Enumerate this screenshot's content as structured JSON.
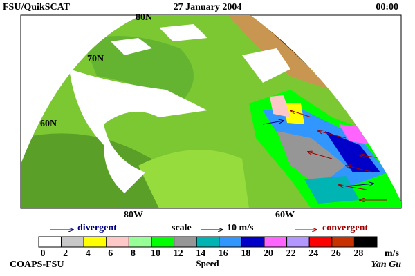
{
  "header": {
    "left": "FSU/QuikSCAT",
    "center": "27 January 2004",
    "right": "00:00"
  },
  "map": {
    "lat_labels": [
      "80N",
      "70N",
      "60N"
    ],
    "lon_labels": [
      "80W",
      "60W"
    ]
  },
  "legend": {
    "left": "divergent",
    "scale": "scale",
    "scale_value": "10 m/s",
    "right": "convergent"
  },
  "colorbar": {
    "colors": [
      "#ffffff",
      "#c8c8c8",
      "#ffff00",
      "#ffc8c8",
      "#96ff96",
      "#00ff00",
      "#969696",
      "#00b4b4",
      "#3296ff",
      "#0000c8",
      "#ff64ff",
      "#b496ff",
      "#ff0000",
      "#c83200",
      "#000000"
    ],
    "ticks": [
      0,
      2,
      4,
      6,
      8,
      10,
      12,
      14,
      16,
      18,
      20,
      22,
      24,
      26,
      28
    ],
    "unit": "m/s",
    "label": "Speed"
  },
  "footer": {
    "left": "COAPS-FSU",
    "right": "Yan Gu"
  }
}
